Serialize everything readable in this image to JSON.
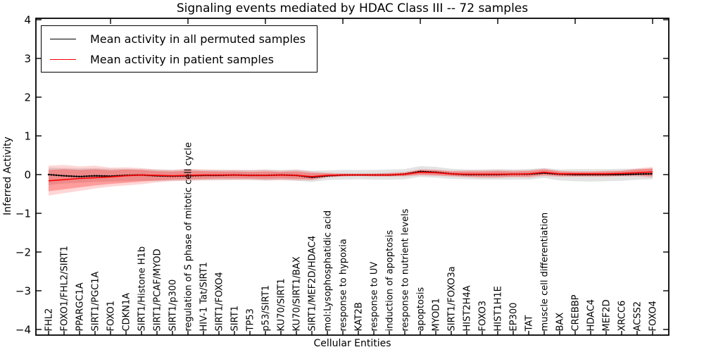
{
  "chart_data": {
    "type": "line",
    "title": "Signaling events mediated by HDAC Class III -- 72 samples",
    "xlabel": "Cellular Entities",
    "ylabel": "Inferred Activity",
    "samples_count_in_title": 72,
    "ylim": [
      -4,
      4
    ],
    "yticks": [
      -4,
      -3,
      -2,
      -1,
      0,
      1,
      2,
      3,
      4
    ],
    "x_major_ticks": [
      5,
      10,
      15,
      20,
      25,
      30,
      35,
      40
    ],
    "grid": false,
    "legend_position": "upper left",
    "categories": [
      "FHL2",
      "FOXO1/FHL2/SIRT1",
      "PPARGC1A",
      "SIRT1/PGC1A",
      "FOXO1",
      "CDKN1A",
      "SIRT1/Histone H1b",
      "SIRT1/PCAF/MYOD",
      "SIRT1/p300",
      "regulation of S phase of mitotic cell cycle",
      "HIV-1 Tat/SIRT1",
      "SIRT1/FOXO4",
      "SIRT1",
      "TP53",
      "p53/SIRT1",
      "KU70/SIRT1",
      "KU70/SIRT1/BAX",
      "SIRT1/MEF2D/HDAC4",
      "mol:Lysophosphatidic acid",
      "response to hypoxia",
      "KAT2B",
      "response to UV",
      "induction of apoptosis",
      "response to nutrient levels",
      "apoptosis",
      "MYOD1",
      "SIRT1/FOXO3a",
      "HIST2H4A",
      "FOXO3",
      "HIST1H1E",
      "EP300",
      "TAT",
      "muscle cell differentiation",
      "BAX",
      "CREBBP",
      "HDAC4",
      "MEF2D",
      "XRCC6",
      "ACSS2",
      "FOXO4"
    ],
    "series": [
      {
        "name": "Mean activity in all permuted samples",
        "color": "#000000",
        "line_style": "solid with dense dot markers",
        "values": [
          0.0,
          -0.03,
          -0.05,
          -0.03,
          -0.04,
          -0.02,
          -0.01,
          -0.03,
          -0.04,
          -0.03,
          -0.02,
          -0.02,
          -0.01,
          -0.02,
          -0.02,
          -0.01,
          -0.02,
          -0.07,
          -0.03,
          -0.01,
          -0.01,
          -0.01,
          -0.01,
          0.01,
          0.08,
          0.06,
          0.02,
          0.0,
          0.0,
          0.0,
          0.01,
          0.01,
          0.04,
          0.01,
          0.0,
          0.0,
          0.0,
          0.0,
          0.01,
          0.02
        ],
        "bands": [
          {
            "label": "permuted-samples-spread",
            "fill": "rgba(0,0,0,0.11)",
            "upper": [
              0.18,
              0.17,
              0.16,
              0.17,
              0.15,
              0.15,
              0.14,
              0.13,
              0.12,
              0.13,
              0.12,
              0.12,
              0.12,
              0.12,
              0.13,
              0.12,
              0.13,
              0.1,
              0.11,
              0.12,
              0.12,
              0.12,
              0.13,
              0.14,
              0.22,
              0.2,
              0.15,
              0.13,
              0.13,
              0.14,
              0.13,
              0.14,
              0.17,
              0.13,
              0.14,
              0.14,
              0.14,
              0.15,
              0.15,
              0.16
            ],
            "lower": [
              -0.27,
              -0.23,
              -0.21,
              -0.19,
              -0.18,
              -0.17,
              -0.16,
              -0.17,
              -0.16,
              -0.15,
              -0.14,
              -0.14,
              -0.13,
              -0.14,
              -0.15,
              -0.14,
              -0.16,
              -0.19,
              -0.14,
              -0.13,
              -0.12,
              -0.13,
              -0.13,
              -0.12,
              -0.06,
              -0.08,
              -0.11,
              -0.12,
              -0.13,
              -0.13,
              -0.13,
              -0.13,
              -0.09,
              -0.15,
              -0.17,
              -0.18,
              -0.17,
              -0.16,
              -0.13,
              -0.12
            ]
          }
        ]
      },
      {
        "name": "Mean activity in patient samples",
        "color": "#ff0000",
        "line_style": "solid",
        "values": [
          -0.16,
          -0.13,
          -0.1,
          -0.08,
          -0.06,
          -0.03,
          -0.01,
          -0.02,
          -0.03,
          -0.02,
          -0.01,
          -0.01,
          -0.01,
          -0.02,
          -0.02,
          -0.01,
          -0.02,
          -0.05,
          -0.02,
          -0.01,
          -0.01,
          -0.01,
          -0.01,
          0.01,
          0.06,
          0.05,
          0.02,
          0.01,
          0.01,
          0.01,
          0.01,
          0.02,
          0.06,
          0.02,
          0.02,
          0.02,
          0.02,
          0.03,
          0.05,
          0.07
        ],
        "bands": [
          {
            "label": "patient-samples-outer-spread",
            "fill": "rgba(255,0,0,0.16)",
            "upper": [
              0.23,
              0.25,
              0.21,
              0.23,
              0.18,
              0.19,
              0.17,
              0.13,
              0.12,
              0.15,
              0.13,
              0.12,
              0.12,
              0.11,
              0.12,
              0.1,
              0.12,
              0.08,
              0.05,
              0.03,
              0.03,
              0.03,
              0.05,
              0.07,
              0.14,
              0.13,
              0.1,
              0.11,
              0.11,
              0.12,
              0.11,
              0.12,
              0.16,
              0.1,
              0.09,
              0.09,
              0.1,
              0.11,
              0.16,
              0.2
            ],
            "lower": [
              -0.54,
              -0.48,
              -0.42,
              -0.36,
              -0.31,
              -0.28,
              -0.25,
              -0.2,
              -0.17,
              -0.16,
              -0.15,
              -0.14,
              -0.14,
              -0.13,
              -0.15,
              -0.14,
              -0.15,
              -0.15,
              -0.08,
              -0.05,
              -0.04,
              -0.05,
              -0.05,
              -0.05,
              -0.02,
              -0.03,
              -0.05,
              -0.07,
              -0.09,
              -0.09,
              -0.07,
              -0.08,
              -0.04,
              -0.06,
              -0.06,
              -0.06,
              -0.06,
              -0.05,
              -0.05,
              -0.08
            ]
          },
          {
            "label": "patient-samples-inner-spread",
            "fill": "rgba(255,0,0,0.27)",
            "upper": [
              0.12,
              0.14,
              0.12,
              0.14,
              0.11,
              0.13,
              0.12,
              0.09,
              0.08,
              0.1,
              0.09,
              0.08,
              0.08,
              0.07,
              0.08,
              0.07,
              0.08,
              0.04,
              0.03,
              0.02,
              0.02,
              0.02,
              0.03,
              0.05,
              0.12,
              0.11,
              0.08,
              0.08,
              0.08,
              0.09,
              0.08,
              0.09,
              0.13,
              0.08,
              0.07,
              0.07,
              0.08,
              0.09,
              0.13,
              0.16
            ],
            "lower": [
              -0.43,
              -0.38,
              -0.33,
              -0.28,
              -0.24,
              -0.21,
              -0.18,
              -0.15,
              -0.13,
              -0.12,
              -0.11,
              -0.1,
              -0.1,
              -0.1,
              -0.11,
              -0.1,
              -0.11,
              -0.12,
              -0.06,
              -0.04,
              -0.03,
              -0.04,
              -0.04,
              -0.03,
              0.0,
              -0.01,
              -0.03,
              -0.05,
              -0.06,
              -0.06,
              -0.05,
              -0.05,
              -0.01,
              -0.04,
              -0.04,
              -0.04,
              -0.04,
              -0.03,
              -0.02,
              -0.04
            ]
          }
        ]
      }
    ],
    "axis_color": "#000000",
    "background_color": "#ffffff"
  }
}
